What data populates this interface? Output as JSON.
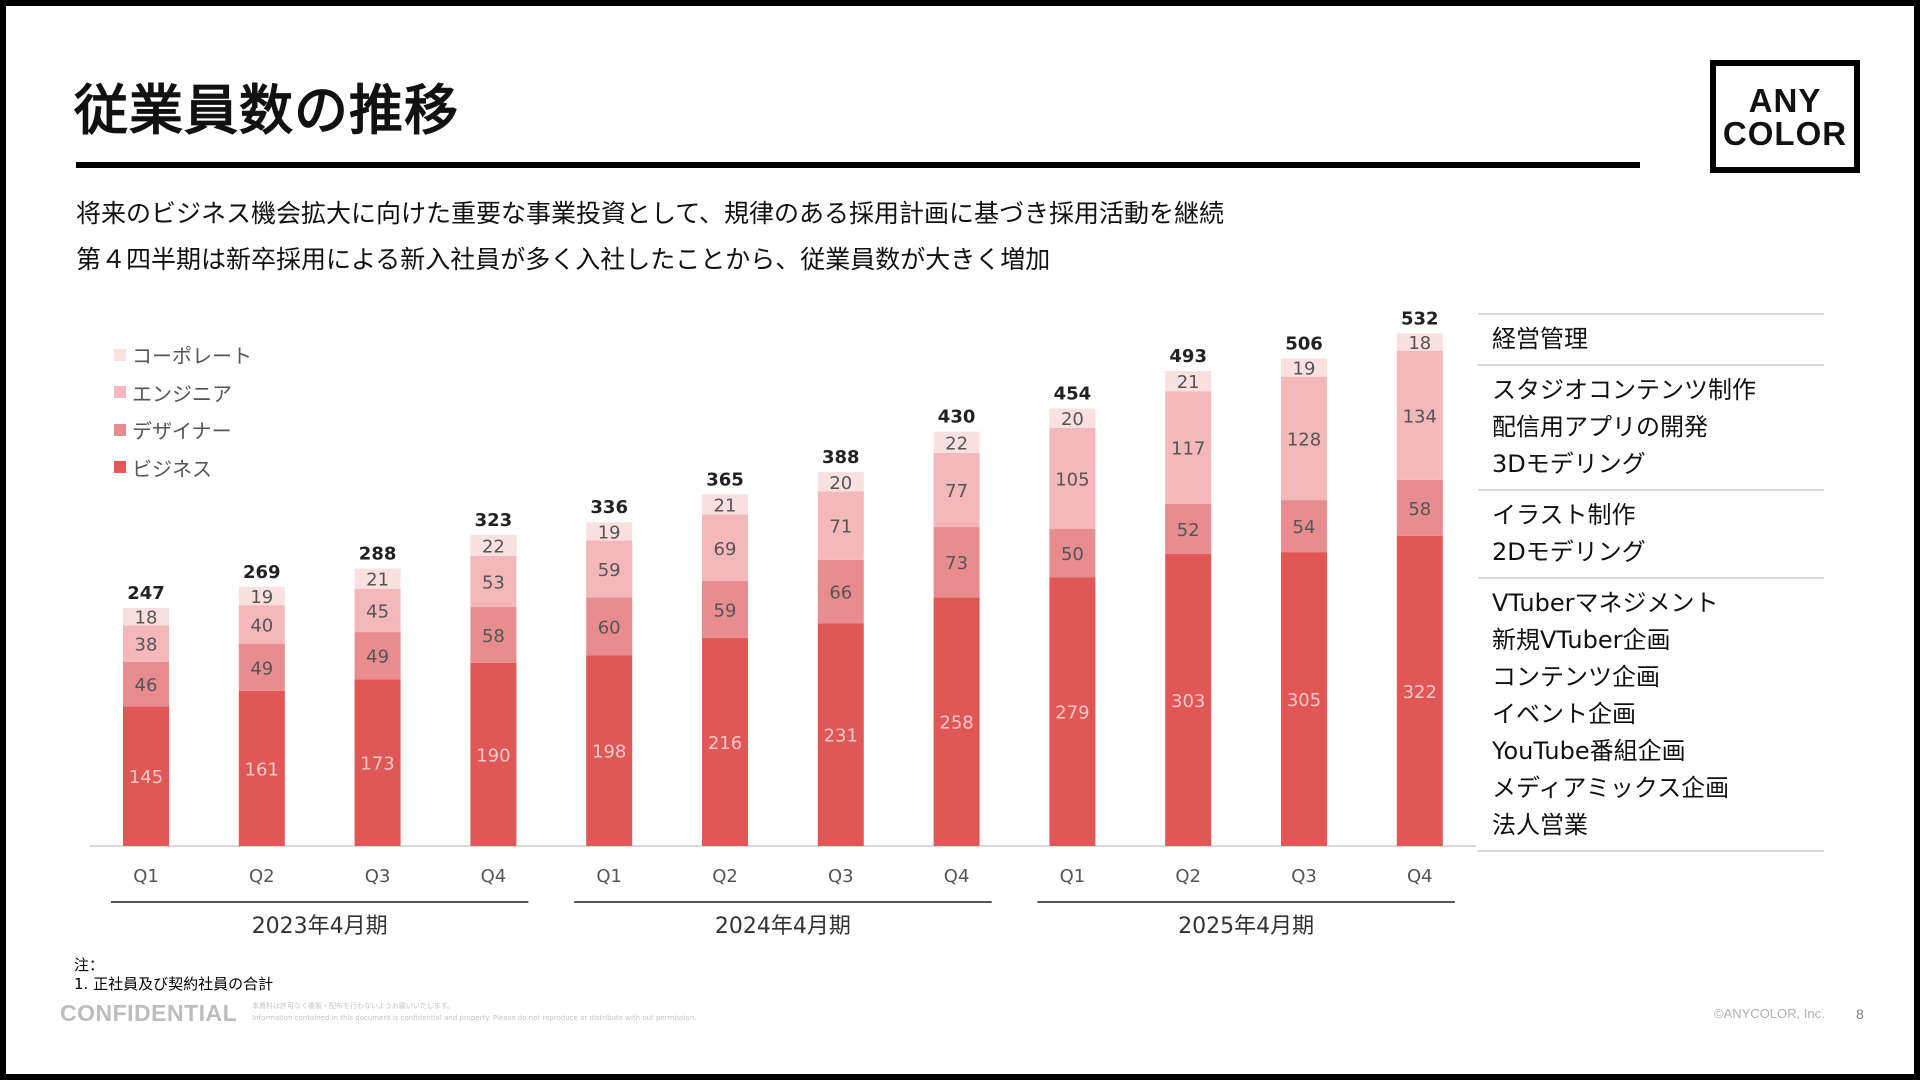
{
  "header": {
    "title": "従業員数の推移",
    "logo_line1": "ANY",
    "logo_line2": "COLOR"
  },
  "lead": {
    "line1": "将来のビジネス機会拡大に向けた重要な事業投資として、規律のある採用計画に基づき採用活動を継続",
    "line2": "第４四半期は新卒採用による新入社員が多く入社したことから、従業員数が大きく増加"
  },
  "legend": [
    {
      "label": "コーポレート",
      "color": "#fbe0e0"
    },
    {
      "label": "エンジニア",
      "color": "#f4b8bb"
    },
    {
      "label": "デザイナー",
      "color": "#e98c8f"
    },
    {
      "label": "ビジネス",
      "color": "#e15756"
    }
  ],
  "chart_data": {
    "type": "bar",
    "stacked": true,
    "categories": [
      "Q1",
      "Q2",
      "Q3",
      "Q4",
      "Q1",
      "Q2",
      "Q3",
      "Q4",
      "Q1",
      "Q2",
      "Q3",
      "Q4"
    ],
    "groups": [
      {
        "label": "2023年4月期",
        "count": 4
      },
      {
        "label": "2024年4月期",
        "count": 4
      },
      {
        "label": "2025年4月期",
        "count": 4
      }
    ],
    "series": [
      {
        "name": "ビジネス",
        "color": "#e15756",
        "label_color": "#f6c9c9",
        "values": [
          145,
          161,
          173,
          190,
          198,
          216,
          231,
          258,
          279,
          303,
          305,
          322
        ]
      },
      {
        "name": "デザイナー",
        "color": "#e98c8f",
        "label_color": "#555555",
        "values": [
          46,
          49,
          49,
          58,
          60,
          59,
          66,
          73,
          50,
          52,
          54,
          58
        ]
      },
      {
        "name": "エンジニア",
        "color": "#f4b8bb",
        "label_color": "#555555",
        "values": [
          38,
          40,
          45,
          53,
          59,
          69,
          71,
          77,
          105,
          117,
          128,
          134
        ]
      },
      {
        "name": "コーポレート",
        "color": "#fbe0e0",
        "label_color": "#555555",
        "values": [
          18,
          19,
          21,
          22,
          19,
          21,
          20,
          22,
          20,
          21,
          19,
          18
        ]
      }
    ],
    "totals": [
      247,
      269,
      288,
      323,
      336,
      365,
      388,
      430,
      454,
      493,
      506,
      532
    ],
    "ylim": [
      0,
      560
    ]
  },
  "side_panel": {
    "groups": [
      {
        "items": [
          "経営管理"
        ]
      },
      {
        "items": [
          "スタジオコンテンツ制作",
          "配信用アプリの開発",
          "3Dモデリング"
        ]
      },
      {
        "items": [
          "イラスト制作",
          "2Dモデリング"
        ]
      },
      {
        "items": [
          "VTuberマネジメント",
          "新規VTuber企画",
          "コンテンツ企画",
          "イベント企画",
          "YouTube番組企画",
          "メディアミックス企画",
          "法人営業"
        ]
      }
    ]
  },
  "footer": {
    "note_label": "注：",
    "note_text": "1. 正社員及び契約社員の合計",
    "confidential": "CONFIDENTIAL",
    "disclaimer_line1": "本資料は許可なく複製・配布を行わないようお願いいたします。",
    "disclaimer_line2": "Information contained in this document is confidential and property. Please do not reproduce or distribute with out permission.",
    "copyright": "©ANYCOLOR, Inc.",
    "page": "8"
  }
}
